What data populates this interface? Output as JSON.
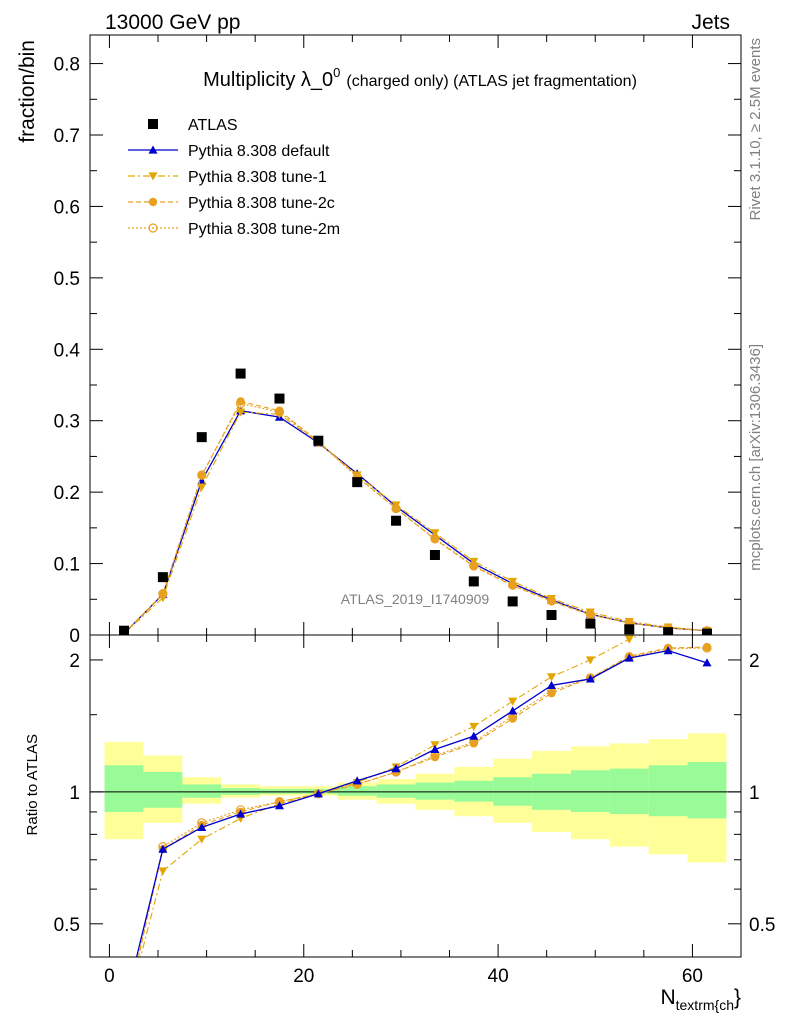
{
  "header": {
    "left": "13000 GeV pp",
    "right": "Jets"
  },
  "title": {
    "main": "Multiplicity λ_0",
    "superscript": "0",
    "suffix": "(charged only) (ATLAS jet fragmentation)"
  },
  "side_labels": {
    "rivet": "Rivet 3.1.10, ≥ 2.5M events",
    "mcplots": "mcplots.cern.ch [arXiv:1306.3436]"
  },
  "analysis_id": "ATLAS_2019_I1740909",
  "chart_data": [
    {
      "type": "scatter",
      "panel": "main",
      "ylabel": "fraction/bin",
      "xlim": [
        -2,
        65
      ],
      "ylim": [
        0,
        0.84
      ],
      "yticks": [
        0,
        0.1,
        0.2,
        0.3,
        0.4,
        0.5,
        0.6,
        0.7,
        0.8
      ],
      "ytick_labels": [
        "0",
        "0.1",
        "0.2",
        "0.3",
        "0.4",
        "0.5",
        "0.6",
        "0.7",
        "0.8"
      ],
      "legend_position": "top-left",
      "x": [
        1.5,
        5.5,
        9.5,
        13.5,
        17.5,
        21.5,
        25.5,
        29.5,
        33.5,
        37.5,
        41.5,
        45.5,
        49.5,
        53.5,
        57.5,
        61.5
      ],
      "series": [
        {
          "name": "ATLAS",
          "style": "data",
          "color": "#000000",
          "values": [
            0.006,
            0.081,
            0.277,
            0.366,
            0.331,
            0.272,
            0.214,
            0.16,
            0.112,
            0.075,
            0.047,
            0.028,
            0.016,
            0.008,
            0.004,
            0.002
          ]
        },
        {
          "name": "Pythia 8.308 default",
          "style": "solid-triangle",
          "color": "#0000cc",
          "values": [
            0.002,
            0.057,
            0.216,
            0.314,
            0.305,
            0.269,
            0.226,
            0.18,
            0.14,
            0.1,
            0.072,
            0.049,
            0.029,
            0.017,
            0.01,
            0.006
          ]
        },
        {
          "name": "Pythia 8.308 tune-1",
          "style": "dashdot-triangle-down",
          "color": "#e3a600",
          "values": [
            0.002,
            0.052,
            0.207,
            0.312,
            0.309,
            0.27,
            0.224,
            0.182,
            0.143,
            0.103,
            0.075,
            0.051,
            0.032,
            0.019,
            0.011,
            0.006
          ]
        },
        {
          "name": "Pythia 8.308 tune-2c",
          "style": "dashed-circle",
          "color": "#e8a020",
          "values": [
            0.002,
            0.057,
            0.223,
            0.327,
            0.314,
            0.271,
            0.222,
            0.177,
            0.134,
            0.096,
            0.069,
            0.047,
            0.028,
            0.017,
            0.01,
            0.006
          ]
        },
        {
          "name": "Pythia 8.308 tune-2m",
          "style": "dotted-open-circle",
          "color": "#e8a020",
          "values": [
            0.002,
            0.058,
            0.224,
            0.324,
            0.312,
            0.27,
            0.221,
            0.177,
            0.135,
            0.097,
            0.07,
            0.048,
            0.029,
            0.017,
            0.01,
            0.006
          ]
        }
      ]
    },
    {
      "type": "line",
      "panel": "ratio",
      "ylabel": "Ratio to ATLAS",
      "xlabel": "N",
      "xlabel_subscript": "textrm{ch",
      "xlabel_trailing": "}",
      "xlim": [
        -2,
        65
      ],
      "ylim": [
        0.42,
        2.28
      ],
      "ylog": true,
      "yticks": [
        0.5,
        1,
        2
      ],
      "ytick_labels": [
        "0.5",
        "1",
        "2"
      ],
      "xticks": [
        0,
        20,
        40,
        60
      ],
      "xtick_labels": [
        "0",
        "20",
        "40",
        "60"
      ],
      "bin_edges": [
        -0.5,
        3.5,
        7.5,
        11.5,
        15.5,
        19.5,
        23.5,
        27.5,
        31.5,
        35.5,
        39.5,
        43.5,
        47.5,
        51.5,
        55.5,
        59.5,
        63.5
      ],
      "band_inner": {
        "color": "#98fb98",
        "low": [
          0.9,
          0.92,
          0.97,
          0.985,
          0.99,
          0.99,
          0.98,
          0.97,
          0.96,
          0.95,
          0.93,
          0.91,
          0.9,
          0.89,
          0.88,
          0.87
        ],
        "high": [
          1.15,
          1.11,
          1.04,
          1.02,
          1.015,
          1.015,
          1.03,
          1.04,
          1.05,
          1.06,
          1.08,
          1.1,
          1.12,
          1.13,
          1.15,
          1.17
        ]
      },
      "band_outer": {
        "color": "#ffff99",
        "low": [
          0.78,
          0.85,
          0.94,
          0.97,
          0.98,
          0.98,
          0.96,
          0.94,
          0.91,
          0.88,
          0.85,
          0.81,
          0.78,
          0.75,
          0.72,
          0.69
        ],
        "high": [
          1.3,
          1.21,
          1.08,
          1.04,
          1.03,
          1.03,
          1.05,
          1.07,
          1.1,
          1.14,
          1.19,
          1.24,
          1.27,
          1.29,
          1.32,
          1.36
        ]
      },
      "x": [
        1.5,
        5.5,
        9.5,
        13.5,
        17.5,
        21.5,
        25.5,
        29.5,
        33.5,
        37.5,
        41.5,
        45.5,
        49.5,
        53.5,
        57.5,
        61.5
      ],
      "series": [
        {
          "name": "Pythia 8.308 default",
          "style": "solid-triangle",
          "color": "#0000cc",
          "values": [
            0.32,
            0.74,
            0.83,
            0.89,
            0.93,
            0.99,
            1.06,
            1.13,
            1.25,
            1.34,
            1.53,
            1.75,
            1.81,
            2.02,
            2.1,
            1.97
          ]
        },
        {
          "name": "Pythia 8.308 tune-1",
          "style": "dashdot-triangle-down",
          "color": "#e3a600",
          "values": [
            0.3,
            0.66,
            0.78,
            0.87,
            0.94,
            0.99,
            1.05,
            1.14,
            1.28,
            1.41,
            1.61,
            1.83,
            2.0,
            2.23,
            2.4,
            2.45
          ]
        },
        {
          "name": "Pythia 8.308 tune-2c",
          "style": "dashed-circle",
          "color": "#e8a020",
          "values": [
            0.3,
            0.74,
            0.84,
            0.9,
            0.95,
            0.99,
            1.04,
            1.11,
            1.2,
            1.29,
            1.47,
            1.68,
            1.82,
            2.04,
            2.13,
            2.14
          ]
        },
        {
          "name": "Pythia 8.308 tune-2m",
          "style": "dotted-open-circle",
          "color": "#e8a020",
          "values": [
            0.3,
            0.75,
            0.85,
            0.91,
            0.95,
            0.99,
            1.04,
            1.11,
            1.21,
            1.3,
            1.49,
            1.7,
            1.82,
            2.03,
            2.12,
            2.13
          ]
        }
      ]
    }
  ]
}
